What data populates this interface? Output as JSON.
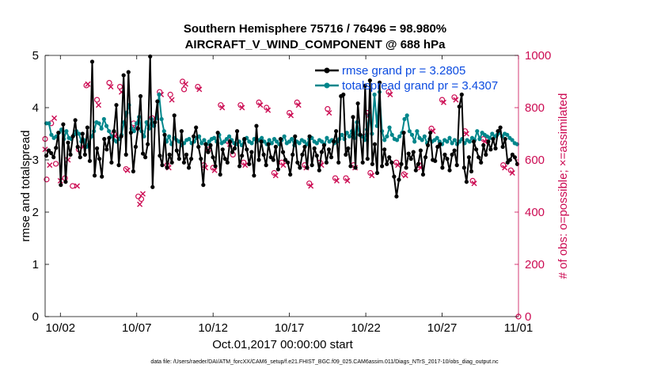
{
  "chart_data": {
    "type": "line",
    "title": "Southern Hemisphere 75716 / 76496 = 98.980%",
    "subtitle": "AIRCRAFT_V_WIND_COMPONENT @ 688 hPa",
    "xlabel": "Oct.01,2017 00:00:00 start",
    "ylabel_left": "rmse and totalspread",
    "ylabel_right": "# of obs: o=possible; ×=assimilated",
    "footnote": "data file: /Users/raeder/DAI/ATM_forcXX/CAM6_setup/f.e21.FHIST_BGC.f09_025.CAM6assim.011/Diags_NTrS_2017-10/obs_diag_output.nc",
    "xlim": [
      0,
      31
    ],
    "ylim_left": [
      0,
      5
    ],
    "ylim_right": [
      0,
      1000
    ],
    "x_ticks": [
      1,
      6,
      11,
      16,
      21,
      26,
      31
    ],
    "x_tick_labels": [
      "10/02",
      "10/07",
      "10/12",
      "10/17",
      "10/22",
      "10/27",
      "11/01"
    ],
    "y_left_ticks": [
      "0",
      "1",
      "2",
      "3",
      "4",
      "5"
    ],
    "y_right_ticks": [
      "0",
      "200",
      "400",
      "600",
      "800",
      "1000"
    ],
    "colors": {
      "rmse": "#000000",
      "spread": "#00868b",
      "obs": "#cc0a52",
      "legend_text": "#0b4be0"
    },
    "series": [
      {
        "name": "rmse grand pr = 3.2805",
        "axis": "left",
        "values": [
          3.08,
          3.18,
          3.13,
          3.05,
          3.23,
          3.52,
          2.52,
          3.68,
          2.58,
          3.33,
          3.1,
          3.45,
          3.76,
          3.25,
          3.05,
          3.5,
          3.1,
          3.62,
          2.98,
          4.88,
          2.7,
          3.22,
          3.02,
          2.68,
          3.4,
          3.2,
          3.42,
          2.95,
          3.55,
          4.05,
          2.9,
          3.45,
          4.62,
          3.1,
          4.68,
          3.52,
          2.78,
          3.25,
          3.6,
          4.22,
          3.12,
          3.05,
          3.3,
          4.98,
          2.48,
          3.72,
          4.12,
          3.08,
          2.9,
          3.48,
          2.85,
          3.1,
          2.95,
          3.85,
          3.18,
          3.02,
          3.55,
          2.95,
          3.1,
          2.85,
          3.02,
          3.45,
          3.62,
          3.25,
          3.02,
          2.52,
          3.3,
          3.15,
          3.28,
          3.05,
          2.88,
          3.52,
          2.72,
          3.2,
          3.02,
          2.95,
          3.35,
          3.15,
          3.22,
          3.55,
          2.88,
          3.08,
          3.4,
          3.2,
          2.92,
          3.15,
          2.7,
          3.65,
          3.0,
          3.35,
          3.1,
          2.9,
          3.3,
          3.05,
          3.0,
          3.25,
          2.82,
          3.4,
          3.15,
          3.0,
          2.95,
          2.72,
          3.1,
          3.45,
          2.95,
          2.85,
          3.1,
          3.25,
          2.85,
          3.45,
          2.9,
          3.22,
          3.08,
          2.8,
          3.15,
          3.28,
          2.95,
          3.2,
          3.05,
          3.35,
          3.55,
          2.95,
          4.22,
          4.25,
          3.1,
          3.22,
          2.88,
          3.82,
          2.85,
          4.08,
          3.48,
          2.95,
          4.42,
          3.02,
          4.52,
          2.92,
          3.3,
          2.75,
          4.48,
          2.88,
          3.2,
          2.92,
          3.05,
          2.95,
          2.68,
          2.3,
          2.62,
          2.92,
          3.52,
          2.85,
          3.12,
          3.02,
          3.15,
          2.8,
          2.92,
          3.18,
          2.72,
          3.05,
          3.28,
          3.52,
          3.0,
          2.98,
          3.25,
          3.3,
          2.85,
          3.1,
          3.02,
          2.8,
          3.1,
          3.18,
          2.9,
          4.02,
          4.25,
          2.85,
          2.58,
          3.05,
          2.78,
          3.35,
          3.2,
          3.05,
          2.95,
          3.28,
          3.1,
          3.35,
          3.2,
          3.4,
          3.22,
          3.55,
          3.62,
          3.25,
          3.4,
          2.95,
          3.0,
          3.1,
          3.05,
          2.92
        ]
      },
      {
        "name": "totalspread grand pr = 3.4307",
        "axis": "left",
        "values": [
          3.7,
          3.7,
          3.48,
          3.42,
          3.45,
          3.52,
          3.58,
          3.4,
          3.55,
          3.42,
          3.4,
          3.48,
          3.55,
          3.5,
          3.35,
          3.38,
          3.25,
          3.3,
          3.45,
          3.55,
          3.72,
          3.7,
          3.6,
          3.78,
          3.65,
          3.55,
          3.45,
          3.38,
          3.35,
          3.4,
          3.48,
          3.72,
          3.9,
          4.05,
          3.6,
          3.55,
          3.7,
          3.82,
          3.55,
          3.45,
          3.72,
          3.6,
          3.78,
          3.65,
          3.8,
          4.25,
          3.78,
          3.55,
          3.35,
          3.45,
          3.3,
          3.42,
          3.38,
          3.35,
          3.28,
          3.32,
          3.38,
          3.4,
          3.32,
          3.35,
          3.42,
          3.45,
          3.32,
          3.38,
          3.3,
          3.35,
          3.4,
          3.42,
          3.35,
          3.48,
          3.32,
          3.35,
          3.4,
          3.45,
          3.38,
          3.32,
          3.3,
          3.35,
          3.28,
          3.38,
          3.42,
          3.35,
          3.32,
          3.4,
          3.35,
          3.38,
          3.42,
          3.35,
          3.3,
          3.38,
          3.32,
          3.4,
          3.35,
          3.3,
          3.38,
          3.45,
          3.32,
          3.35,
          3.4,
          3.28,
          3.35,
          3.32,
          3.38,
          3.35,
          3.3,
          3.4,
          3.42,
          3.35,
          3.32,
          3.38,
          3.35,
          3.3,
          3.42,
          3.35,
          3.38,
          3.32,
          3.35,
          3.4,
          3.48,
          3.4,
          3.52,
          3.45,
          3.55,
          3.42,
          3.72,
          3.48,
          3.45,
          3.38,
          3.58,
          3.85,
          3.5,
          4.25,
          3.65,
          4.3,
          3.55,
          3.38,
          3.45,
          3.62,
          3.48,
          3.4,
          3.38,
          3.45,
          3.52,
          3.78,
          3.85,
          3.55,
          3.48,
          3.35,
          3.55,
          3.42,
          3.38,
          3.45,
          3.32,
          3.4,
          3.35,
          3.38,
          3.42,
          3.35,
          3.3,
          3.38,
          3.35,
          3.42,
          3.32,
          3.38,
          3.3,
          3.35,
          3.4,
          3.32,
          3.38,
          3.35,
          3.42,
          3.38,
          3.55,
          3.4,
          3.52,
          3.48,
          3.45,
          3.42,
          3.5,
          3.45,
          3.48,
          3.52,
          3.45,
          3.5,
          3.48,
          3.42,
          3.38,
          3.32,
          3.3
        ]
      }
    ],
    "obs_possible": [
      [
        0.0,
        680
      ],
      [
        0.1,
        525
      ],
      [
        0.4,
        740
      ],
      [
        0.7,
        585
      ],
      [
        1.3,
        530
      ],
      [
        1.8,
        500
      ],
      [
        2.2,
        640
      ],
      [
        2.7,
        885
      ],
      [
        3.4,
        830
      ],
      [
        4.2,
        895
      ],
      [
        4.5,
        700
      ],
      [
        4.9,
        880
      ],
      [
        5.3,
        565
      ],
      [
        5.8,
        740
      ],
      [
        6.1,
        460
      ],
      [
        6.3,
        450
      ],
      [
        7.0,
        760
      ],
      [
        7.5,
        860
      ],
      [
        8.0,
        580
      ],
      [
        8.2,
        850
      ],
      [
        9.0,
        900
      ],
      [
        9.1,
        870
      ],
      [
        10.0,
        880
      ],
      [
        10.4,
        580
      ],
      [
        10.7,
        640
      ],
      [
        11.0,
        570
      ],
      [
        11.5,
        810
      ],
      [
        12.0,
        670
      ],
      [
        12.3,
        620
      ],
      [
        12.8,
        810
      ],
      [
        13.0,
        590
      ],
      [
        14.0,
        820
      ],
      [
        14.5,
        800
      ],
      [
        15.0,
        550
      ],
      [
        15.5,
        590
      ],
      [
        16.0,
        780
      ],
      [
        16.5,
        820
      ],
      [
        17.0,
        580
      ],
      [
        17.3,
        510
      ],
      [
        18.0,
        590
      ],
      [
        18.5,
        795
      ],
      [
        19.0,
        530
      ],
      [
        19.7,
        530
      ],
      [
        20.2,
        580
      ],
      [
        21.0,
        690
      ],
      [
        21.1,
        780
      ],
      [
        21.3,
        550
      ],
      [
        22.5,
        860
      ],
      [
        23.0,
        590
      ],
      [
        23.5,
        545
      ],
      [
        24.5,
        580
      ],
      [
        25.3,
        720
      ],
      [
        26.0,
        830
      ],
      [
        26.8,
        840
      ],
      [
        27.5,
        710
      ],
      [
        28.0,
        520
      ],
      [
        28.7,
        680
      ],
      [
        30.0,
        580
      ],
      [
        30.5,
        560
      ],
      [
        31.0,
        0
      ]
    ],
    "obs_assimilated": [
      [
        0.0,
        640
      ],
      [
        0.3,
        580
      ],
      [
        0.6,
        760
      ],
      [
        1.0,
        520
      ],
      [
        1.5,
        600
      ],
      [
        2.1,
        500
      ],
      [
        2.5,
        650
      ],
      [
        2.8,
        890
      ],
      [
        3.5,
        810
      ],
      [
        4.3,
        880
      ],
      [
        4.6,
        690
      ],
      [
        5.0,
        860
      ],
      [
        5.4,
        560
      ],
      [
        5.9,
        720
      ],
      [
        6.2,
        430
      ],
      [
        6.4,
        470
      ],
      [
        7.1,
        740
      ],
      [
        7.6,
        850
      ],
      [
        8.1,
        570
      ],
      [
        8.3,
        830
      ],
      [
        9.2,
        890
      ],
      [
        10.1,
        870
      ],
      [
        10.5,
        570
      ],
      [
        11.1,
        560
      ],
      [
        11.6,
        800
      ],
      [
        12.1,
        660
      ],
      [
        12.9,
        800
      ],
      [
        13.1,
        580
      ],
      [
        14.1,
        810
      ],
      [
        14.6,
        790
      ],
      [
        15.1,
        540
      ],
      [
        15.6,
        580
      ],
      [
        16.1,
        770
      ],
      [
        16.6,
        810
      ],
      [
        17.1,
        570
      ],
      [
        17.4,
        500
      ],
      [
        18.1,
        580
      ],
      [
        18.6,
        780
      ],
      [
        19.1,
        520
      ],
      [
        19.8,
        520
      ],
      [
        20.3,
        570
      ],
      [
        21.2,
        770
      ],
      [
        21.4,
        540
      ],
      [
        22.6,
        850
      ],
      [
        23.1,
        580
      ],
      [
        23.6,
        540
      ],
      [
        24.6,
        570
      ],
      [
        25.4,
        710
      ],
      [
        26.1,
        820
      ],
      [
        26.9,
        830
      ],
      [
        27.6,
        700
      ],
      [
        28.1,
        510
      ],
      [
        28.8,
        670
      ],
      [
        30.1,
        570
      ],
      [
        30.6,
        550
      ]
    ]
  }
}
